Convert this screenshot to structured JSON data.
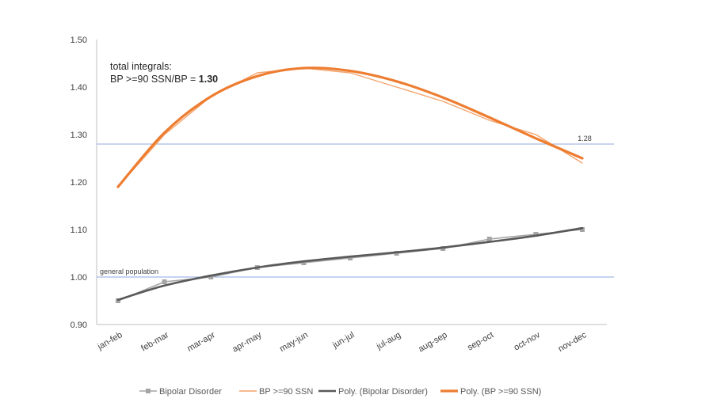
{
  "chart_data": {
    "type": "line",
    "categories": [
      "jan-feb",
      "feb-mar",
      "mar-apr",
      "apr-may",
      "may-jun",
      "jun-jul",
      "jul-aug",
      "aug-sep",
      "sep-oct",
      "oct-nov",
      "nov-dec"
    ],
    "series": [
      {
        "name": "Bipolar Disorder",
        "color": "#a5a5a5",
        "marker": "square",
        "values": [
          0.95,
          0.99,
          1.0,
          1.02,
          1.03,
          1.04,
          1.05,
          1.06,
          1.08,
          1.09,
          1.1
        ]
      },
      {
        "name": "BP >=90 SSN",
        "color": "#f4a46c",
        "marker": "none",
        "values": [
          1.19,
          1.3,
          1.38,
          1.43,
          1.44,
          1.43,
          1.4,
          1.37,
          1.33,
          1.3,
          1.24
        ]
      },
      {
        "name": "Poly. (Bipolar Disorder)",
        "color": "#595959",
        "marker": "none",
        "values": [
          0.952,
          0.982,
          1.003,
          1.02,
          1.033,
          1.043,
          1.052,
          1.062,
          1.074,
          1.087,
          1.103
        ]
      },
      {
        "name": "Poly. (BP >=90 SSN)",
        "color": "#ed7d31",
        "marker": "none",
        "values": [
          1.19,
          1.304,
          1.38,
          1.423,
          1.44,
          1.434,
          1.412,
          1.378,
          1.336,
          1.292,
          1.25
        ]
      }
    ],
    "ylim": [
      0.9,
      1.5
    ],
    "yticks": [
      "0.90",
      "1.00",
      "1.10",
      "1.20",
      "1.30",
      "1.40",
      "1.50"
    ],
    "grid": false,
    "legend_position": "bottom",
    "reference_lines": [
      {
        "value": 1.0,
        "label": "general population",
        "color": "#8faadc"
      },
      {
        "value": 1.28,
        "label": "1.28",
        "color": "#8faadc"
      }
    ],
    "annotation": {
      "line1": "total integrals:",
      "line2_prefix": "BP >=90 SSN/BP = ",
      "line2_value": "1.30"
    }
  }
}
